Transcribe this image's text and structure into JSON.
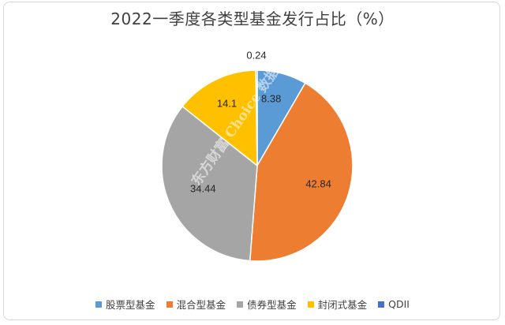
{
  "chart_data": {
    "type": "pie",
    "title": "2022一季度各类型基金发行占比（%）",
    "categories": [
      "股票型基金",
      "混合型基金",
      "债券型基金",
      "封闭式基金",
      "QDII"
    ],
    "values": [
      8.38,
      42.84,
      34.44,
      14.1,
      0.24
    ],
    "value_labels": [
      "8.38",
      "42.84",
      "34.44",
      "14.1",
      "0.24"
    ],
    "colors": [
      "#5b9bd5",
      "#ed7d31",
      "#a5a5a5",
      "#ffc000",
      "#4472c4"
    ],
    "legend_position": "bottom",
    "start_angle_deg": 0,
    "direction": "clockwise"
  },
  "watermark": "东方财富 Choice 数据"
}
